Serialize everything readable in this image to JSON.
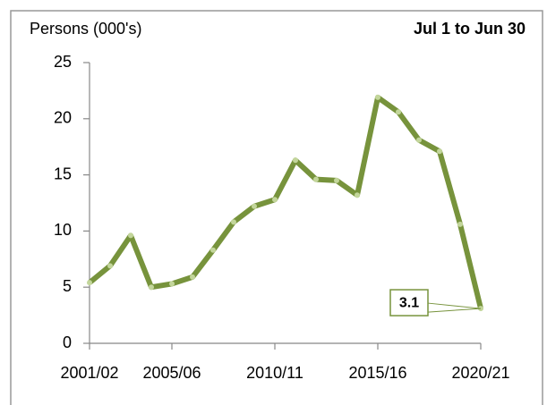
{
  "chart_data": {
    "type": "line",
    "y_label": "Persons (000's)",
    "subtitle": "Jul 1 to Jun 30",
    "categories": [
      "2001/02",
      null,
      null,
      null,
      "2005/06",
      null,
      null,
      null,
      null,
      "2010/11",
      null,
      null,
      null,
      null,
      "2015/16",
      null,
      null,
      null,
      null,
      "2020/21"
    ],
    "values": [
      5.4,
      6.9,
      9.6,
      5.0,
      5.3,
      5.9,
      8.3,
      10.8,
      12.2,
      12.8,
      16.3,
      14.6,
      14.5,
      13.2,
      21.9,
      20.6,
      18.1,
      17.1,
      10.6,
      3.1
    ],
    "color": "#77933c",
    "marker_color": "#c3d69b",
    "ylim": [
      0,
      25
    ],
    "yticks": [
      0,
      5,
      10,
      15,
      20,
      25
    ]
  }
}
